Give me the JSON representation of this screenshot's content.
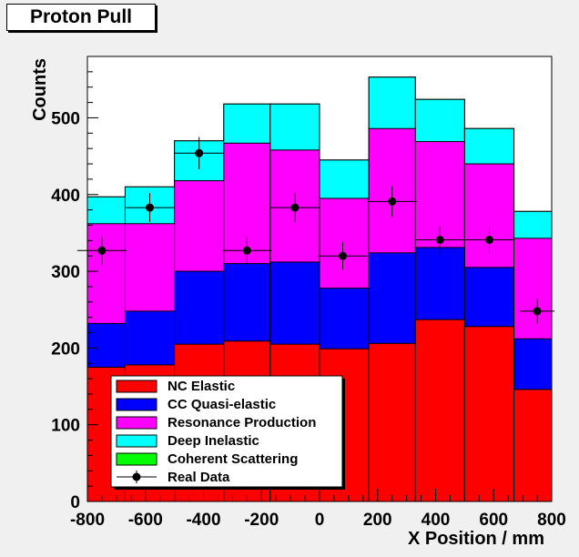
{
  "title": "Proton Pull",
  "chart_data": {
    "type": "bar",
    "stacked": true,
    "title": "Proton Pull",
    "xlabel": "X Position / mm",
    "ylabel": "Counts",
    "xlim": [
      -800,
      800
    ],
    "ylim": [
      0,
      580
    ],
    "grid": false,
    "legend_position": "bottom-left",
    "x_ticks": [
      -800,
      -600,
      -400,
      -200,
      0,
      200,
      400,
      600,
      800
    ],
    "x_tick_labels": [
      "-800",
      "-600",
      "-400",
      "-200",
      "0",
      "200",
      "400",
      "600",
      "800"
    ],
    "y_ticks": [
      0,
      100,
      200,
      300,
      400,
      500
    ],
    "y_tick_labels": [
      "0",
      "100",
      "200",
      "300",
      "400",
      "500"
    ],
    "bin_edges": [
      -800,
      -670,
      -500,
      -330,
      -170,
      0,
      170,
      330,
      500,
      670,
      800
    ],
    "series": [
      {
        "name": "NC Elastic",
        "color": "#ff0000",
        "cumulative": [
          175,
          178,
          205,
          209,
          205,
          199,
          206,
          237,
          228,
          146
        ]
      },
      {
        "name": "CC Quasi-elastic",
        "color": "#0000ff",
        "cumulative": [
          232,
          248,
          300,
          310,
          312,
          278,
          324,
          331,
          305,
          212
        ]
      },
      {
        "name": "Resonance Production",
        "color": "#ff00ff",
        "cumulative": [
          362,
          362,
          418,
          467,
          458,
          395,
          486,
          469,
          440,
          343
        ]
      },
      {
        "name": "Deep Inelastic",
        "color": "#00ffff",
        "cumulative": [
          397,
          410,
          470,
          518,
          518,
          445,
          553,
          524,
          486,
          378
        ]
      },
      {
        "name": "Coherent Scattering",
        "color": "#00ff00",
        "cumulative": [
          397,
          410,
          470,
          518,
          518,
          445,
          553,
          524,
          486,
          378
        ]
      }
    ],
    "data_points": {
      "name": "Real Data",
      "color": "#000000",
      "x": [
        -750,
        -585,
        -415,
        -250,
        -85,
        80,
        250,
        415,
        585,
        750
      ],
      "y": [
        327,
        383,
        454,
        327,
        383,
        320,
        391,
        341,
        341,
        248
      ],
      "y_err": [
        18,
        19,
        21,
        18,
        19,
        18,
        20,
        18,
        18,
        16
      ],
      "x_err": [
        85,
        85,
        85,
        85,
        85,
        85,
        85,
        85,
        85,
        60
      ]
    }
  },
  "legend": {
    "items": [
      {
        "label": "NC Elastic",
        "kind": "box",
        "color": "#ff0000"
      },
      {
        "label": "CC Quasi-elastic",
        "kind": "box",
        "color": "#0000ff"
      },
      {
        "label": "Resonance Production",
        "kind": "box",
        "color": "#ff00ff"
      },
      {
        "label": "Deep Inelastic",
        "kind": "box",
        "color": "#00ffff"
      },
      {
        "label": "Coherent Scattering",
        "kind": "box",
        "color": "#00ff00"
      },
      {
        "label": "Real Data",
        "kind": "marker",
        "color": "#000000"
      }
    ]
  }
}
